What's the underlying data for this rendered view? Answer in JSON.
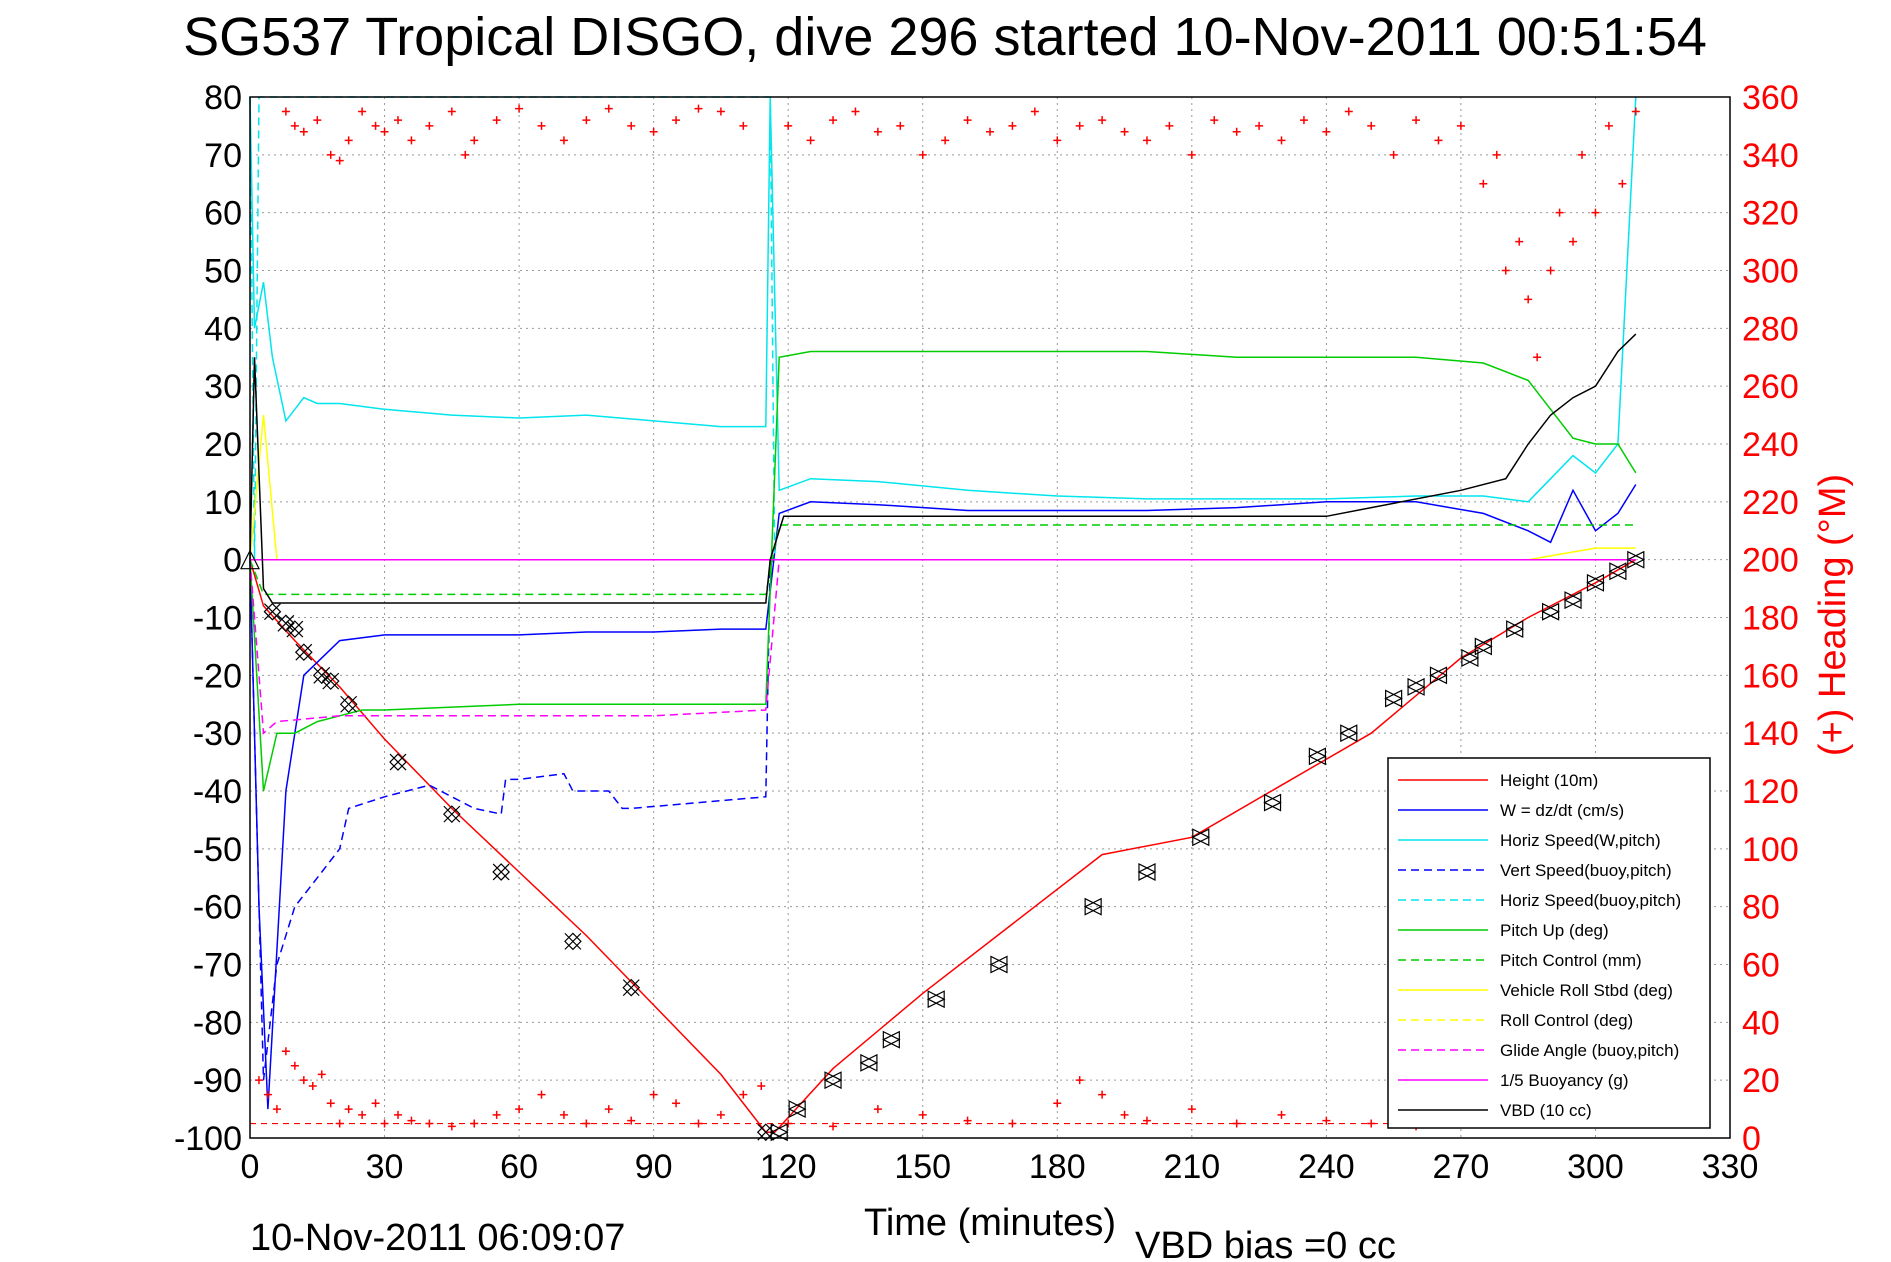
{
  "chart_data": {
    "type": "line",
    "title": "SG537 Tropical DISGO, dive 296 started 10-Nov-2011 00:51:54",
    "xlabel": "Time (minutes)",
    "ylabel": "",
    "y2label": "(+) Heading (°M)",
    "xlim": [
      0,
      330
    ],
    "ylim": [
      -100,
      80
    ],
    "y2lim": [
      0,
      360
    ],
    "x_ticks": [
      "0",
      "30",
      "60",
      "90",
      "120",
      "150",
      "180",
      "210",
      "240",
      "270",
      "300",
      "330"
    ],
    "y_ticks": [
      "80",
      "70",
      "60",
      "50",
      "40",
      "30",
      "20",
      "10",
      "0",
      "-10",
      "-20",
      "-30",
      "-40",
      "-50",
      "-60",
      "-70",
      "-80",
      "-90",
      "-100"
    ],
    "y2_ticks": [
      "360",
      "340",
      "320",
      "300",
      "280",
      "260",
      "240",
      "220",
      "200",
      "180",
      "160",
      "140",
      "120",
      "100",
      "80",
      "60",
      "40",
      "20",
      "0"
    ],
    "grid": true,
    "legend_position": "bottom-right",
    "footer_left": "10-Nov-2011 06:09:07",
    "footer_right": "VBD bias =0 cc",
    "colors": {
      "height": "#ff0000",
      "w": "#0000ff",
      "horiz": "#00e5ee",
      "pitch": "#00cc00",
      "roll": "#ffff00",
      "glide": "#ff00ff",
      "vbd": "#000000",
      "heading": "#ff0000"
    },
    "series": [
      {
        "name": "Height (10m)",
        "color": "#ff0000",
        "dash": false,
        "x": [
          0,
          3,
          10,
          20,
          30,
          45,
          60,
          75,
          90,
          105,
          115,
          117,
          130,
          150,
          170,
          190,
          210,
          230,
          250,
          270,
          285,
          300,
          309
        ],
        "y": [
          0,
          -8,
          -14,
          -22,
          -31,
          -43,
          -54,
          -65,
          -77,
          -89,
          -99,
          -99,
          -88,
          -75,
          -63,
          -51,
          -48,
          -39,
          -30,
          -17,
          -10,
          -4,
          0
        ]
      },
      {
        "name": "W = dz/dt (cm/s)",
        "color": "#0000ff",
        "dash": false,
        "x": [
          0,
          2,
          4,
          8,
          12,
          20,
          30,
          45,
          60,
          75,
          90,
          105,
          115,
          118,
          125,
          140,
          160,
          180,
          200,
          220,
          240,
          260,
          275,
          285,
          290,
          295,
          300,
          305,
          309
        ],
        "y": [
          0,
          -60,
          -95,
          -40,
          -20,
          -14,
          -13,
          -13,
          -13,
          -12.5,
          -12.5,
          -12,
          -12,
          8,
          10,
          9.5,
          8.5,
          8.5,
          8.5,
          9,
          10,
          10,
          8,
          5,
          3,
          12,
          5,
          8,
          13
        ]
      },
      {
        "name": "Horiz Speed(W,pitch)",
        "color": "#00e5ee",
        "dash": false,
        "x": [
          0,
          1,
          3,
          5,
          8,
          12,
          15,
          20,
          30,
          45,
          60,
          75,
          90,
          105,
          115,
          116,
          118,
          125,
          140,
          160,
          180,
          200,
          220,
          240,
          260,
          275,
          285,
          290,
          295,
          300,
          305,
          309
        ],
        "y": [
          80,
          40,
          48,
          35,
          24,
          28,
          27,
          27,
          26,
          25,
          24.5,
          25,
          24,
          23,
          23,
          80,
          12,
          14,
          13.5,
          12,
          11,
          10.5,
          10.5,
          10.5,
          11,
          11,
          10,
          14,
          18,
          15,
          20,
          80
        ]
      },
      {
        "name": "Vert Speed(buoy,pitch)",
        "color": "#0000ff",
        "dash": true,
        "x": [
          0,
          3,
          6,
          10,
          15,
          20,
          22,
          30,
          40,
          45,
          50,
          56,
          57,
          60,
          70,
          72,
          80,
          83,
          85,
          100,
          115,
          116
        ],
        "y": [
          0,
          -90,
          -70,
          -60,
          -55,
          -50,
          -43,
          -41,
          -39,
          -41,
          -43,
          -44,
          -38,
          -38,
          -37,
          -40,
          -40,
          -43,
          -43,
          -42,
          -41,
          0
        ]
      },
      {
        "name": "Horiz Speed(buoy,pitch)",
        "color": "#00e5ee",
        "dash": true,
        "x": [
          0,
          1,
          2,
          116,
          117,
          309
        ],
        "y": [
          80,
          0,
          80,
          80,
          0,
          0
        ]
      },
      {
        "name": "Pitch Up (deg)",
        "color": "#00cc00",
        "dash": false,
        "x": [
          0,
          3,
          6,
          10,
          15,
          20,
          25,
          30,
          45,
          60,
          75,
          90,
          105,
          115,
          118,
          125,
          140,
          160,
          180,
          200,
          220,
          240,
          260,
          275,
          285,
          290,
          295,
          300,
          305,
          309
        ],
        "y": [
          0,
          -40,
          -30,
          -30,
          -28,
          -27,
          -26,
          -26,
          -25.5,
          -25,
          -25,
          -25,
          -25,
          -25,
          35,
          36,
          36,
          36,
          36,
          36,
          35,
          35,
          35,
          34,
          31,
          26,
          21,
          20,
          20,
          15
        ]
      },
      {
        "name": "Pitch Control (mm)",
        "color": "#00cc00",
        "dash": true,
        "x": [
          0,
          3,
          115,
          118,
          309
        ],
        "y": [
          0,
          -6,
          -6,
          6,
          6
        ]
      },
      {
        "name": "Vehicle Roll Stbd (deg)",
        "color": "#ffff00",
        "dash": false,
        "x": [
          0,
          3,
          6,
          10,
          20,
          30,
          60,
          90,
          115,
          118,
          150,
          180,
          210,
          240,
          270,
          285,
          300,
          309
        ],
        "y": [
          0,
          25,
          0,
          0,
          0,
          0,
          0,
          0,
          0,
          0,
          0,
          0,
          0,
          0,
          0,
          0,
          2,
          2
        ]
      },
      {
        "name": "Roll Control (deg)",
        "color": "#ffff00",
        "dash": true,
        "x": [
          0,
          3,
          115,
          118,
          309
        ],
        "y": [
          0,
          0,
          0,
          0,
          0
        ]
      },
      {
        "name": "Glide Angle (buoy,pitch)",
        "color": "#ff00ff",
        "dash": true,
        "x": [
          0,
          3,
          6,
          20,
          30,
          60,
          90,
          115,
          118,
          309
        ],
        "y": [
          0,
          -30,
          -28,
          -27,
          -27,
          -27,
          -27,
          -26,
          0,
          0
        ]
      },
      {
        "name": "1/5 Buoyancy (g)",
        "color": "#ff00ff",
        "dash": false,
        "x": [
          0,
          309
        ],
        "y": [
          0,
          0
        ]
      },
      {
        "name": "VBD (10 cc)",
        "color": "#000000",
        "dash": false,
        "x": [
          0,
          1,
          3,
          5,
          115,
          116,
          119,
          240,
          270,
          280,
          285,
          290,
          295,
          300,
          305,
          309
        ],
        "y": [
          0,
          35,
          -5,
          -7.5,
          -7.5,
          0,
          7.5,
          7.5,
          12,
          14,
          20,
          25,
          28,
          30,
          36,
          39
        ]
      }
    ],
    "heading_series": {
      "name": "Heading",
      "marker": "+",
      "color": "#ff0000",
      "x": [
        2,
        4,
        6,
        8,
        10,
        12,
        14,
        16,
        18,
        20,
        22,
        25,
        28,
        30,
        33,
        36,
        40,
        45,
        50,
        55,
        60,
        65,
        70,
        75,
        80,
        85,
        90,
        95,
        100,
        105,
        110,
        114,
        8,
        10,
        12,
        15,
        18,
        20,
        22,
        25,
        28,
        30,
        33,
        36,
        40,
        45,
        48,
        50,
        55,
        60,
        65,
        70,
        75,
        80,
        85,
        90,
        95,
        100,
        105,
        110,
        120,
        125,
        130,
        135,
        140,
        145,
        150,
        155,
        160,
        165,
        170,
        175,
        180,
        185,
        190,
        195,
        200,
        205,
        210,
        215,
        220,
        225,
        230,
        235,
        240,
        245,
        250,
        255,
        260,
        265,
        270,
        275,
        278,
        280,
        283,
        285,
        287,
        290,
        292,
        295,
        297,
        300,
        303,
        306,
        309,
        120,
        130,
        140,
        150,
        160,
        170,
        180,
        185,
        190,
        195,
        200,
        210,
        220,
        230,
        240,
        250,
        260,
        270,
        280
      ],
      "y": [
        20,
        15,
        10,
        30,
        25,
        20,
        18,
        22,
        12,
        5,
        10,
        8,
        12,
        5,
        8,
        6,
        5,
        4,
        5,
        8,
        10,
        15,
        8,
        5,
        10,
        6,
        15,
        12,
        5,
        8,
        15,
        18,
        355,
        350,
        348,
        352,
        340,
        338,
        345,
        355,
        350,
        348,
        352,
        345,
        350,
        355,
        340,
        345,
        352,
        356,
        350,
        345,
        352,
        356,
        350,
        348,
        352,
        356,
        355,
        350,
        350,
        345,
        352,
        355,
        348,
        350,
        340,
        345,
        352,
        348,
        350,
        355,
        345,
        350,
        352,
        348,
        345,
        350,
        340,
        352,
        348,
        350,
        345,
        352,
        348,
        355,
        350,
        340,
        352,
        345,
        350,
        330,
        340,
        300,
        310,
        290,
        270,
        300,
        320,
        310,
        340,
        320,
        350,
        330,
        355,
        5,
        4,
        10,
        8,
        6,
        5,
        12,
        20,
        15,
        8,
        6,
        10,
        5,
        8,
        6,
        5,
        4,
        5,
        6
      ]
    },
    "markers": {
      "descent": {
        "x": [
          5,
          8,
          10,
          12,
          16,
          18,
          22,
          33,
          45,
          56,
          72,
          85,
          115
        ],
        "y": [
          -9,
          -11,
          -12,
          -16,
          -20,
          -21,
          -25,
          -35,
          -44,
          -54,
          -66,
          -74,
          -99
        ]
      },
      "ascent": {
        "x": [
          118,
          122,
          130,
          138,
          143,
          153,
          167,
          188,
          200,
          212,
          228,
          238,
          245,
          255,
          260,
          265,
          272,
          275,
          282,
          290,
          295,
          300,
          305,
          309
        ],
        "y": [
          -99,
          -95,
          -90,
          -87,
          -83,
          -76,
          -70,
          -60,
          -54,
          -48,
          -42,
          -34,
          -30,
          -24,
          -22,
          -20,
          -17,
          -15,
          -12,
          -9,
          -7,
          -4,
          -2,
          0
        ]
      }
    }
  }
}
